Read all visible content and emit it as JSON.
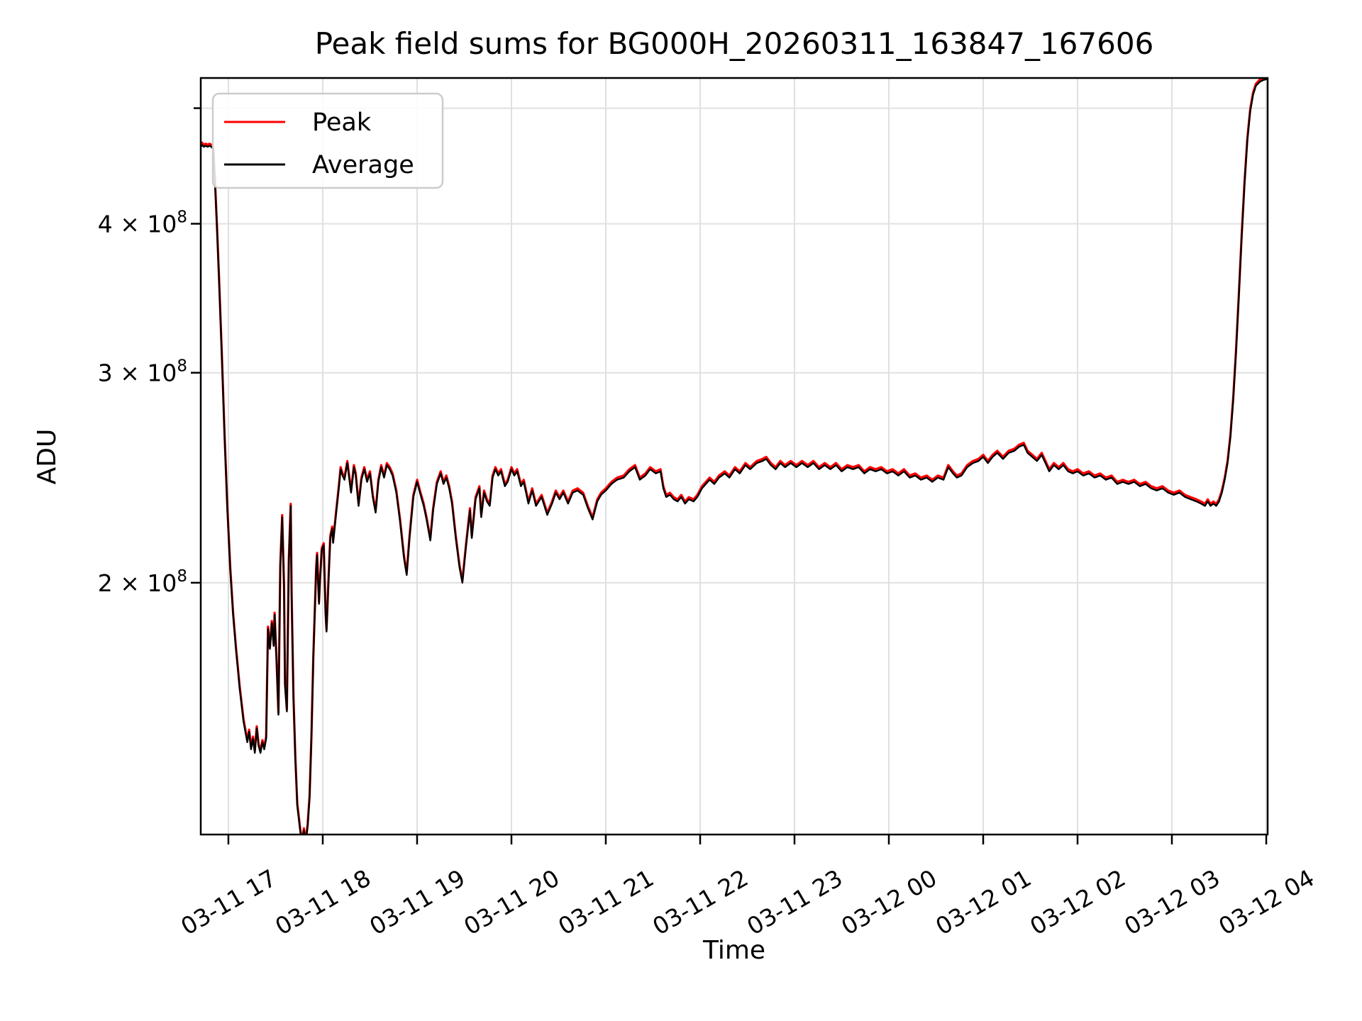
{
  "title": "Peak field sums for BG000H_20260311_163847_167606",
  "axes": {
    "xlabel": "Time",
    "ylabel": "ADU",
    "yscale": "log",
    "grid": true,
    "xlim_hours_since_0311_0000": [
      16.707,
      28.015
    ],
    "ylim_adu": [
      123000000,
      530000000
    ],
    "x_ticks": [
      {
        "hour": 17,
        "label": "03-11 17"
      },
      {
        "hour": 18,
        "label": "03-11 18"
      },
      {
        "hour": 19,
        "label": "03-11 19"
      },
      {
        "hour": 20,
        "label": "03-11 20"
      },
      {
        "hour": 21,
        "label": "03-11 21"
      },
      {
        "hour": 22,
        "label": "03-11 22"
      },
      {
        "hour": 23,
        "label": "03-11 23"
      },
      {
        "hour": 24,
        "label": "03-12 00"
      },
      {
        "hour": 25,
        "label": "03-12 01"
      },
      {
        "hour": 26,
        "label": "03-12 02"
      },
      {
        "hour": 27,
        "label": "03-12 03"
      },
      {
        "hour": 28,
        "label": "03-12 04"
      }
    ],
    "y_ticks": [
      {
        "value_e8": 2,
        "label_main": "2 × 10",
        "label_exp": "8"
      },
      {
        "value_e8": 3,
        "label_main": "3 × 10",
        "label_exp": "8"
      },
      {
        "value_e8": 4,
        "label_main": "4 × 10",
        "label_exp": "8"
      }
    ],
    "y_minor_ticks_unlabeled_e8": [
      5
    ]
  },
  "legend": {
    "items": [
      {
        "label": "Peak",
        "color": "#ff0000"
      },
      {
        "label": "Average",
        "color": "#000000"
      }
    ]
  },
  "colors": {
    "peak_line": "#ff0000",
    "average_line": "#000000",
    "grid_line": "#e0e0e0",
    "spine": "#000000",
    "legend_border": "#cccccc",
    "background": "#ffffff"
  },
  "chart_data": {
    "type": "line",
    "title": "Peak field sums for BG000H_20260311_163847_167606",
    "xlabel": "Time",
    "ylabel": "ADU",
    "x_unit": "hours since 03-11 00:00",
    "value_scale": 100000000.0,
    "series": [
      {
        "name": "Peak",
        "color": "#ff0000",
        "relation": "≈ Average × 1.004 (visually overlapping, red fringe above black)"
      },
      {
        "name": "Average",
        "color": "#000000",
        "relation": "base points below"
      }
    ],
    "peak_ratio": 1.004,
    "points": [
      [
        16.71,
        4.64
      ],
      [
        16.72,
        4.66
      ],
      [
        16.74,
        4.64
      ],
      [
        16.76,
        4.65
      ],
      [
        16.78,
        4.64
      ],
      [
        16.8,
        4.65
      ],
      [
        16.82,
        4.64
      ],
      [
        16.84,
        4.62
      ],
      [
        16.86,
        4.3
      ],
      [
        16.88,
        3.95
      ],
      [
        16.9,
        3.6
      ],
      [
        16.93,
        3.1
      ],
      [
        16.96,
        2.65
      ],
      [
        16.99,
        2.3
      ],
      [
        17.02,
        2.05
      ],
      [
        17.05,
        1.88
      ],
      [
        17.08,
        1.76
      ],
      [
        17.12,
        1.63
      ],
      [
        17.16,
        1.53
      ],
      [
        17.2,
        1.47
      ],
      [
        17.22,
        1.5
      ],
      [
        17.24,
        1.45
      ],
      [
        17.26,
        1.48
      ],
      [
        17.28,
        1.44
      ],
      [
        17.3,
        1.51
      ],
      [
        17.32,
        1.46
      ],
      [
        17.34,
        1.44
      ],
      [
        17.36,
        1.47
      ],
      [
        17.38,
        1.45
      ],
      [
        17.4,
        1.48
      ],
      [
        17.42,
        1.83
      ],
      [
        17.44,
        1.76
      ],
      [
        17.46,
        1.85
      ],
      [
        17.48,
        1.77
      ],
      [
        17.49,
        1.88
      ],
      [
        17.51,
        1.72
      ],
      [
        17.53,
        1.55
      ],
      [
        17.55,
        2.06
      ],
      [
        17.57,
        2.27
      ],
      [
        17.59,
        1.98
      ],
      [
        17.6,
        1.64
      ],
      [
        17.62,
        1.56
      ],
      [
        17.64,
        2.08
      ],
      [
        17.66,
        2.32
      ],
      [
        17.67,
        1.95
      ],
      [
        17.69,
        1.6
      ],
      [
        17.71,
        1.42
      ],
      [
        17.73,
        1.3
      ],
      [
        17.76,
        1.24
      ],
      [
        17.78,
        1.21
      ],
      [
        17.8,
        1.24
      ],
      [
        17.82,
        1.21
      ],
      [
        17.84,
        1.25
      ],
      [
        17.86,
        1.32
      ],
      [
        17.88,
        1.48
      ],
      [
        17.9,
        1.73
      ],
      [
        17.93,
        2.05
      ],
      [
        17.94,
        2.11
      ],
      [
        17.96,
        1.92
      ],
      [
        17.97,
        2.0
      ],
      [
        17.99,
        2.13
      ],
      [
        18.01,
        2.15
      ],
      [
        18.03,
        1.88
      ],
      [
        18.04,
        1.82
      ],
      [
        18.06,
        2.0
      ],
      [
        18.08,
        2.18
      ],
      [
        18.1,
        2.22
      ],
      [
        18.11,
        2.16
      ],
      [
        18.14,
        2.28
      ],
      [
        18.17,
        2.4
      ],
      [
        18.19,
        2.49
      ],
      [
        18.21,
        2.46
      ],
      [
        18.23,
        2.44
      ],
      [
        18.26,
        2.52
      ],
      [
        18.28,
        2.45
      ],
      [
        18.3,
        2.38
      ],
      [
        18.33,
        2.5
      ],
      [
        18.35,
        2.46
      ],
      [
        18.38,
        2.32
      ],
      [
        18.41,
        2.44
      ],
      [
        18.44,
        2.49
      ],
      [
        18.47,
        2.43
      ],
      [
        18.5,
        2.47
      ],
      [
        18.53,
        2.36
      ],
      [
        18.56,
        2.29
      ],
      [
        18.59,
        2.43
      ],
      [
        18.62,
        2.5
      ],
      [
        18.65,
        2.45
      ],
      [
        18.68,
        2.51
      ],
      [
        18.71,
        2.49
      ],
      [
        18.74,
        2.46
      ],
      [
        18.78,
        2.38
      ],
      [
        18.82,
        2.25
      ],
      [
        18.86,
        2.1
      ],
      [
        18.89,
        2.03
      ],
      [
        18.92,
        2.18
      ],
      [
        18.96,
        2.36
      ],
      [
        19.0,
        2.43
      ],
      [
        19.03,
        2.38
      ],
      [
        19.07,
        2.32
      ],
      [
        19.1,
        2.26
      ],
      [
        19.14,
        2.17
      ],
      [
        19.17,
        2.3
      ],
      [
        19.21,
        2.42
      ],
      [
        19.25,
        2.47
      ],
      [
        19.28,
        2.42
      ],
      [
        19.31,
        2.45
      ],
      [
        19.34,
        2.4
      ],
      [
        19.37,
        2.33
      ],
      [
        19.41,
        2.18
      ],
      [
        19.45,
        2.06
      ],
      [
        19.48,
        2.0
      ],
      [
        19.52,
        2.15
      ],
      [
        19.56,
        2.3
      ],
      [
        19.58,
        2.18
      ],
      [
        19.62,
        2.35
      ],
      [
        19.66,
        2.4
      ],
      [
        19.68,
        2.27
      ],
      [
        19.71,
        2.38
      ],
      [
        19.74,
        2.34
      ],
      [
        19.77,
        2.32
      ],
      [
        19.8,
        2.45
      ],
      [
        19.83,
        2.49
      ],
      [
        19.86,
        2.46
      ],
      [
        19.89,
        2.48
      ],
      [
        19.93,
        2.41
      ],
      [
        19.96,
        2.43
      ],
      [
        20.0,
        2.49
      ],
      [
        20.03,
        2.46
      ],
      [
        20.06,
        2.48
      ],
      [
        20.1,
        2.41
      ],
      [
        20.13,
        2.43
      ],
      [
        20.18,
        2.33
      ],
      [
        20.22,
        2.39
      ],
      [
        20.26,
        2.32
      ],
      [
        20.32,
        2.36
      ],
      [
        20.38,
        2.28
      ],
      [
        20.43,
        2.33
      ],
      [
        20.47,
        2.38
      ],
      [
        20.51,
        2.35
      ],
      [
        20.55,
        2.38
      ],
      [
        20.6,
        2.33
      ],
      [
        20.65,
        2.38
      ],
      [
        20.7,
        2.39
      ],
      [
        20.76,
        2.37
      ],
      [
        20.81,
        2.31
      ],
      [
        20.86,
        2.26
      ],
      [
        20.91,
        2.34
      ],
      [
        20.95,
        2.37
      ],
      [
        21.0,
        2.39
      ],
      [
        21.06,
        2.42
      ],
      [
        21.12,
        2.44
      ],
      [
        21.19,
        2.45
      ],
      [
        21.25,
        2.48
      ],
      [
        21.31,
        2.5
      ],
      [
        21.36,
        2.44
      ],
      [
        21.42,
        2.46
      ],
      [
        21.47,
        2.49
      ],
      [
        21.53,
        2.47
      ],
      [
        21.58,
        2.48
      ],
      [
        21.61,
        2.4
      ],
      [
        21.64,
        2.36
      ],
      [
        21.68,
        2.37
      ],
      [
        21.72,
        2.35
      ],
      [
        21.76,
        2.34
      ],
      [
        21.8,
        2.36
      ],
      [
        21.84,
        2.33
      ],
      [
        21.88,
        2.35
      ],
      [
        21.93,
        2.34
      ],
      [
        21.97,
        2.36
      ],
      [
        22.02,
        2.4
      ],
      [
        22.06,
        2.42
      ],
      [
        22.1,
        2.44
      ],
      [
        22.15,
        2.42
      ],
      [
        22.2,
        2.45
      ],
      [
        22.26,
        2.47
      ],
      [
        22.31,
        2.45
      ],
      [
        22.37,
        2.49
      ],
      [
        22.42,
        2.47
      ],
      [
        22.48,
        2.51
      ],
      [
        22.53,
        2.49
      ],
      [
        22.6,
        2.52
      ],
      [
        22.66,
        2.53
      ],
      [
        22.7,
        2.54
      ],
      [
        22.75,
        2.51
      ],
      [
        22.8,
        2.49
      ],
      [
        22.85,
        2.52
      ],
      [
        22.9,
        2.5
      ],
      [
        22.96,
        2.52
      ],
      [
        23.02,
        2.5
      ],
      [
        23.08,
        2.52
      ],
      [
        23.14,
        2.5
      ],
      [
        23.2,
        2.52
      ],
      [
        23.26,
        2.49
      ],
      [
        23.32,
        2.51
      ],
      [
        23.38,
        2.49
      ],
      [
        23.44,
        2.51
      ],
      [
        23.5,
        2.48
      ],
      [
        23.56,
        2.5
      ],
      [
        23.62,
        2.49
      ],
      [
        23.68,
        2.5
      ],
      [
        23.74,
        2.47
      ],
      [
        23.8,
        2.49
      ],
      [
        23.86,
        2.48
      ],
      [
        23.92,
        2.49
      ],
      [
        23.98,
        2.47
      ],
      [
        24.04,
        2.48
      ],
      [
        24.1,
        2.46
      ],
      [
        24.16,
        2.48
      ],
      [
        24.22,
        2.45
      ],
      [
        24.28,
        2.46
      ],
      [
        24.34,
        2.44
      ],
      [
        24.4,
        2.45
      ],
      [
        24.46,
        2.43
      ],
      [
        24.52,
        2.45
      ],
      [
        24.58,
        2.44
      ],
      [
        24.63,
        2.5
      ],
      [
        24.68,
        2.47
      ],
      [
        24.72,
        2.45
      ],
      [
        24.77,
        2.46
      ],
      [
        24.83,
        2.5
      ],
      [
        24.89,
        2.52
      ],
      [
        24.95,
        2.53
      ],
      [
        25.0,
        2.55
      ],
      [
        25.05,
        2.52
      ],
      [
        25.1,
        2.55
      ],
      [
        25.15,
        2.57
      ],
      [
        25.21,
        2.54
      ],
      [
        25.27,
        2.57
      ],
      [
        25.33,
        2.58
      ],
      [
        25.38,
        2.6
      ],
      [
        25.43,
        2.61
      ],
      [
        25.47,
        2.57
      ],
      [
        25.52,
        2.55
      ],
      [
        25.57,
        2.53
      ],
      [
        25.62,
        2.56
      ],
      [
        25.66,
        2.52
      ],
      [
        25.7,
        2.48
      ],
      [
        25.75,
        2.51
      ],
      [
        25.8,
        2.49
      ],
      [
        25.85,
        2.51
      ],
      [
        25.9,
        2.48
      ],
      [
        25.95,
        2.47
      ],
      [
        26.0,
        2.48
      ],
      [
        26.06,
        2.46
      ],
      [
        26.12,
        2.47
      ],
      [
        26.18,
        2.45
      ],
      [
        26.24,
        2.46
      ],
      [
        26.3,
        2.44
      ],
      [
        26.36,
        2.45
      ],
      [
        26.42,
        2.42
      ],
      [
        26.48,
        2.43
      ],
      [
        26.54,
        2.42
      ],
      [
        26.6,
        2.43
      ],
      [
        26.66,
        2.41
      ],
      [
        26.72,
        2.42
      ],
      [
        26.78,
        2.4
      ],
      [
        26.84,
        2.39
      ],
      [
        26.9,
        2.4
      ],
      [
        26.96,
        2.38
      ],
      [
        27.02,
        2.37
      ],
      [
        27.08,
        2.38
      ],
      [
        27.14,
        2.36
      ],
      [
        27.2,
        2.35
      ],
      [
        27.26,
        2.34
      ],
      [
        27.31,
        2.33
      ],
      [
        27.35,
        2.32
      ],
      [
        27.38,
        2.34
      ],
      [
        27.41,
        2.32
      ],
      [
        27.44,
        2.33
      ],
      [
        27.47,
        2.32
      ],
      [
        27.5,
        2.34
      ],
      [
        27.53,
        2.38
      ],
      [
        27.56,
        2.44
      ],
      [
        27.59,
        2.52
      ],
      [
        27.62,
        2.65
      ],
      [
        27.65,
        2.85
      ],
      [
        27.68,
        3.12
      ],
      [
        27.71,
        3.48
      ],
      [
        27.74,
        3.9
      ],
      [
        27.77,
        4.32
      ],
      [
        27.8,
        4.7
      ],
      [
        27.83,
        4.97
      ],
      [
        27.86,
        5.13
      ],
      [
        27.89,
        5.22
      ],
      [
        27.93,
        5.26
      ],
      [
        27.97,
        5.28
      ],
      [
        28.01,
        5.29
      ]
    ]
  }
}
